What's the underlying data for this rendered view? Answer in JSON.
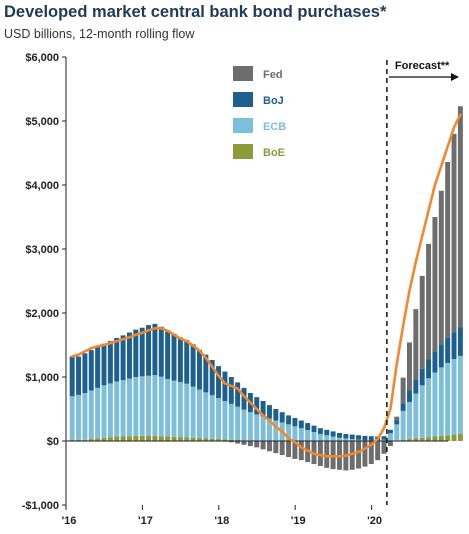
{
  "header": {
    "title": "Developed market central bank bond purchases*",
    "subtitle": "USD billions, 12-month rolling flow"
  },
  "chart_data": {
    "type": "bar",
    "stacked": true,
    "ylim": [
      -1000,
      6000
    ],
    "yticks": [
      -1000,
      0,
      1000,
      2000,
      3000,
      4000,
      5000,
      6000
    ],
    "ytick_labels": [
      "-$1,000",
      "$0",
      "$1,000",
      "$2,000",
      "$3,000",
      "$4,000",
      "$5,000",
      "$6,000"
    ],
    "x_start": 2016.0,
    "x_end": 2021.0,
    "bar_step_years": 0.0833,
    "xticks": [
      2016,
      2017,
      2018,
      2019,
      2020
    ],
    "xtick_labels": [
      "'16",
      "'17",
      "'18",
      "'19",
      "'20"
    ],
    "forecast": {
      "label": "Forecast**",
      "x": 2020.2
    },
    "legend_position": "top-center",
    "colors": {
      "Fed": "#6d6d6d",
      "BoJ": "#1d5f8f",
      "ECB": "#7dbedb",
      "BoE": "#8a9b38",
      "total": "#f0882d"
    },
    "series": [
      {
        "name": "Fed",
        "values": [
          0,
          0,
          0,
          0,
          0,
          0,
          0,
          0,
          0,
          0,
          0,
          0,
          0,
          0,
          0,
          0,
          0,
          0,
          0,
          0,
          0,
          0,
          0,
          0,
          -10,
          -20,
          -40,
          -60,
          -80,
          -100,
          -130,
          -160,
          -190,
          -220,
          -250,
          -280,
          -300,
          -330,
          -360,
          -390,
          -420,
          -440,
          -450,
          -460,
          -450,
          -430,
          -400,
          -360,
          -300,
          -200,
          -80,
          60,
          400,
          750,
          1100,
          1450,
          1800,
          2100,
          2400,
          2750,
          3100,
          3450
        ]
      },
      {
        "name": "BoJ",
        "values": [
          620,
          600,
          620,
          630,
          640,
          650,
          660,
          680,
          700,
          720,
          740,
          760,
          790,
          800,
          780,
          760,
          730,
          700,
          680,
          660,
          620,
          590,
          550,
          500,
          460,
          420,
          380,
          340,
          300,
          270,
          240,
          210,
          180,
          160,
          140,
          130,
          120,
          110,
          100,
          90,
          85,
          80,
          75,
          70,
          70,
          70,
          70,
          65,
          60,
          55,
          55,
          60,
          120,
          180,
          220,
          260,
          300,
          330,
          360,
          390,
          420,
          450
        ]
      },
      {
        "name": "ECB",
        "values": [
          680,
          700,
          730,
          760,
          790,
          820,
          840,
          860,
          880,
          900,
          920,
          930,
          940,
          950,
          930,
          900,
          880,
          860,
          840,
          800,
          760,
          720,
          680,
          640,
          600,
          560,
          520,
          480,
          440,
          410,
          380,
          350,
          320,
          290,
          260,
          230,
          200,
          170,
          140,
          110,
          90,
          70,
          50,
          40,
          30,
          20,
          10,
          10,
          10,
          20,
          120,
          250,
          450,
          580,
          700,
          820,
          920,
          1000,
          1070,
          1130,
          1180,
          1220
        ]
      },
      {
        "name": "BoE",
        "values": [
          20,
          20,
          20,
          30,
          40,
          50,
          60,
          70,
          70,
          75,
          80,
          80,
          80,
          80,
          75,
          70,
          65,
          60,
          55,
          50,
          45,
          40,
          35,
          30,
          25,
          20,
          15,
          10,
          10,
          5,
          5,
          0,
          0,
          0,
          0,
          0,
          0,
          0,
          0,
          0,
          0,
          0,
          0,
          0,
          0,
          0,
          0,
          0,
          0,
          0,
          0,
          10,
          20,
          30,
          40,
          50,
          60,
          70,
          80,
          90,
          100,
          110
        ]
      }
    ],
    "total_line": {
      "name": "Total",
      "values": [
        1320,
        1350,
        1400,
        1450,
        1480,
        1500,
        1530,
        1560,
        1590,
        1620,
        1660,
        1690,
        1730,
        1760,
        1760,
        1720,
        1660,
        1600,
        1560,
        1490,
        1410,
        1300,
        1160,
        1020,
        900,
        860,
        820,
        700,
        600,
        500,
        400,
        320,
        220,
        150,
        40,
        -20,
        -100,
        -150,
        -200,
        -220,
        -240,
        -240,
        -240,
        -230,
        -200,
        -170,
        -120,
        -60,
        30,
        200,
        500,
        1200,
        1800,
        2350,
        2800,
        3200,
        3600,
        4000,
        4300,
        4600,
        4900,
        5100
      ]
    }
  }
}
